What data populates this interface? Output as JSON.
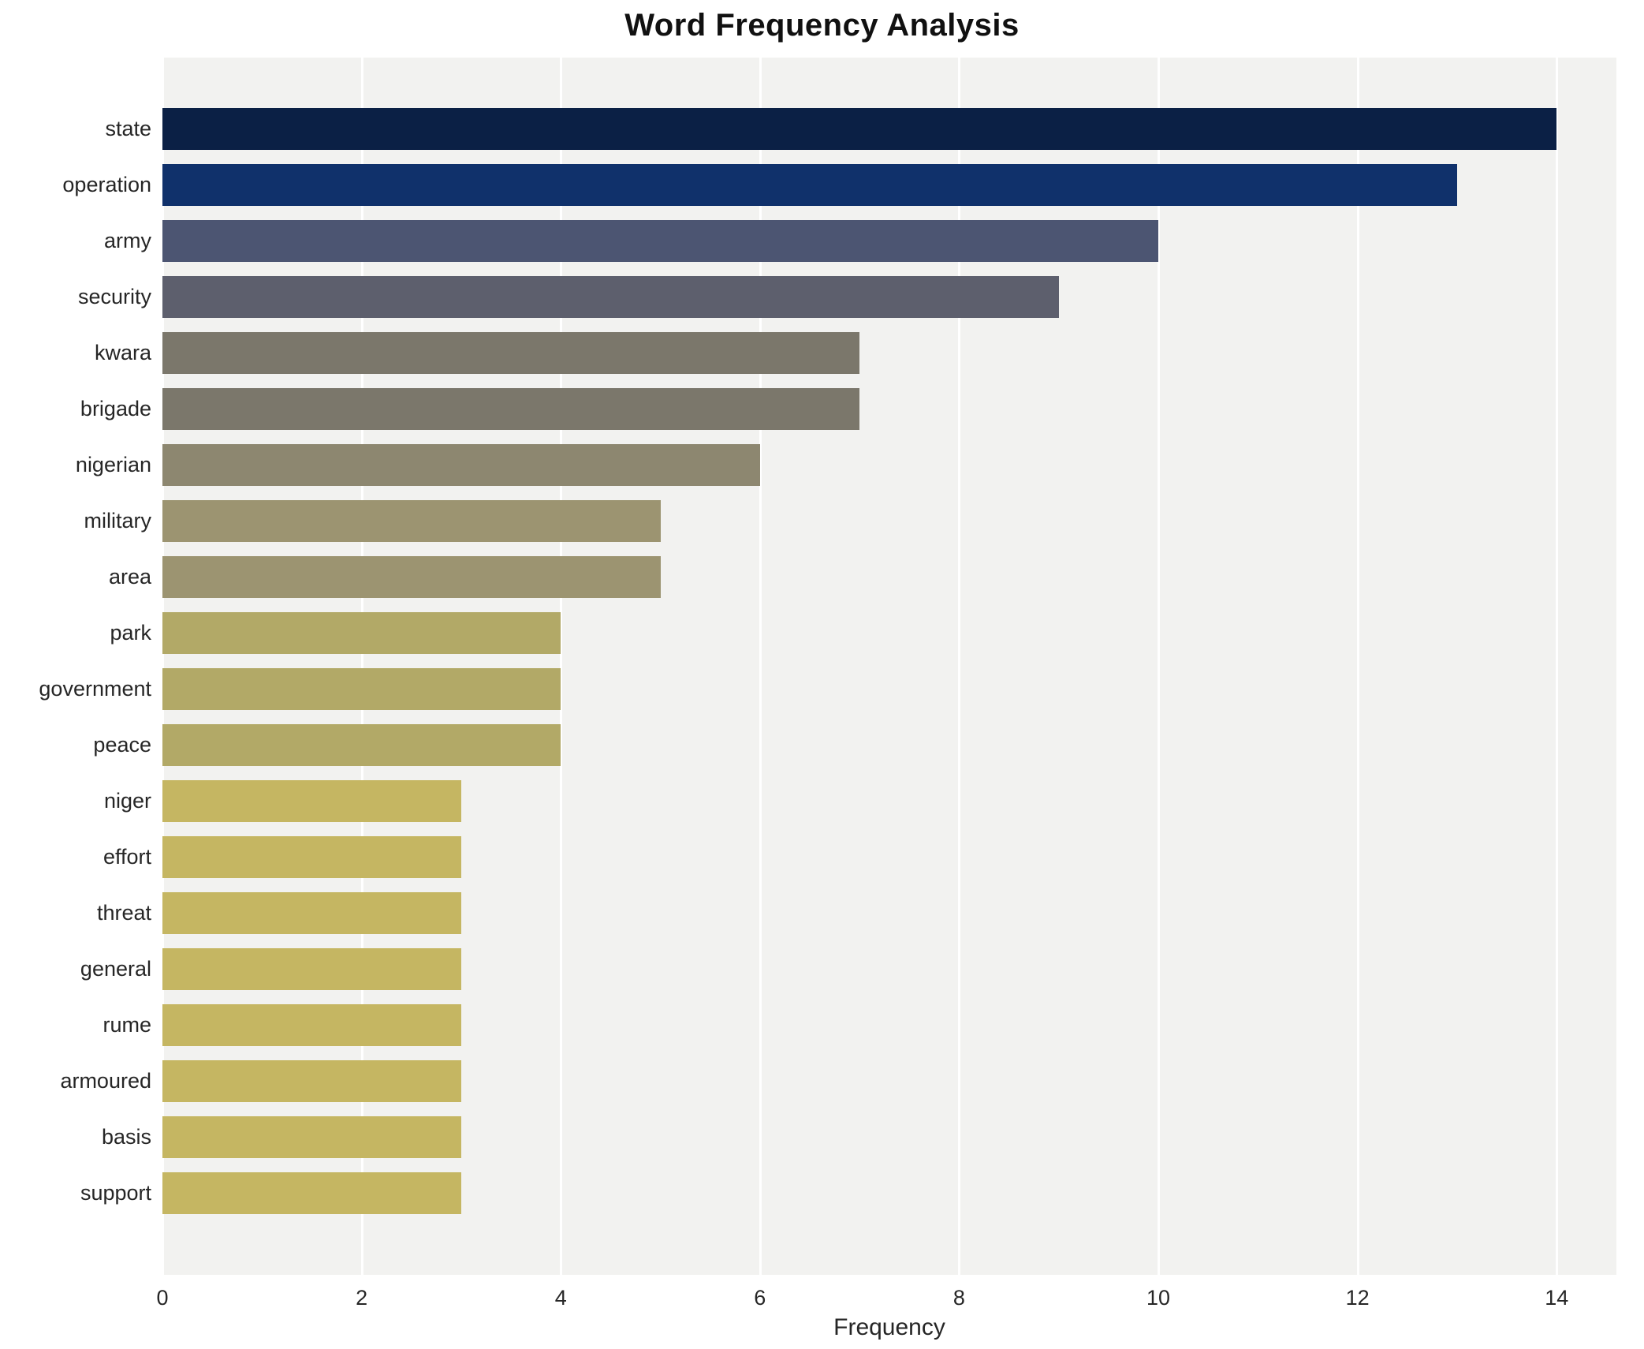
{
  "chart_data": {
    "type": "bar",
    "orientation": "horizontal",
    "title": "Word Frequency Analysis",
    "xlabel": "Frequency",
    "categories": [
      "state",
      "operation",
      "army",
      "security",
      "kwara",
      "brigade",
      "nigerian",
      "military",
      "area",
      "park",
      "government",
      "peace",
      "niger",
      "effort",
      "threat",
      "general",
      "rume",
      "armoured",
      "basis",
      "support"
    ],
    "values": [
      14,
      13,
      10,
      9,
      7,
      7,
      6,
      5,
      5,
      4,
      4,
      4,
      3,
      3,
      3,
      3,
      3,
      3,
      3,
      3
    ],
    "colors": [
      "#0b2045",
      "#10316b",
      "#4c5572",
      "#5d5f6d",
      "#7b776b",
      "#7b776b",
      "#8d8770",
      "#9c9471",
      "#9c9471",
      "#b2a967",
      "#b2a967",
      "#b2a967",
      "#c5b662",
      "#c5b662",
      "#c5b662",
      "#c5b662",
      "#c5b662",
      "#c5b662",
      "#c5b662",
      "#c5b662"
    ],
    "xticks": [
      0,
      2,
      4,
      6,
      8,
      10,
      12,
      14
    ],
    "xlim": [
      0,
      14.6
    ],
    "grid": true,
    "legend": false,
    "plot_background": "#f2f2f0"
  }
}
